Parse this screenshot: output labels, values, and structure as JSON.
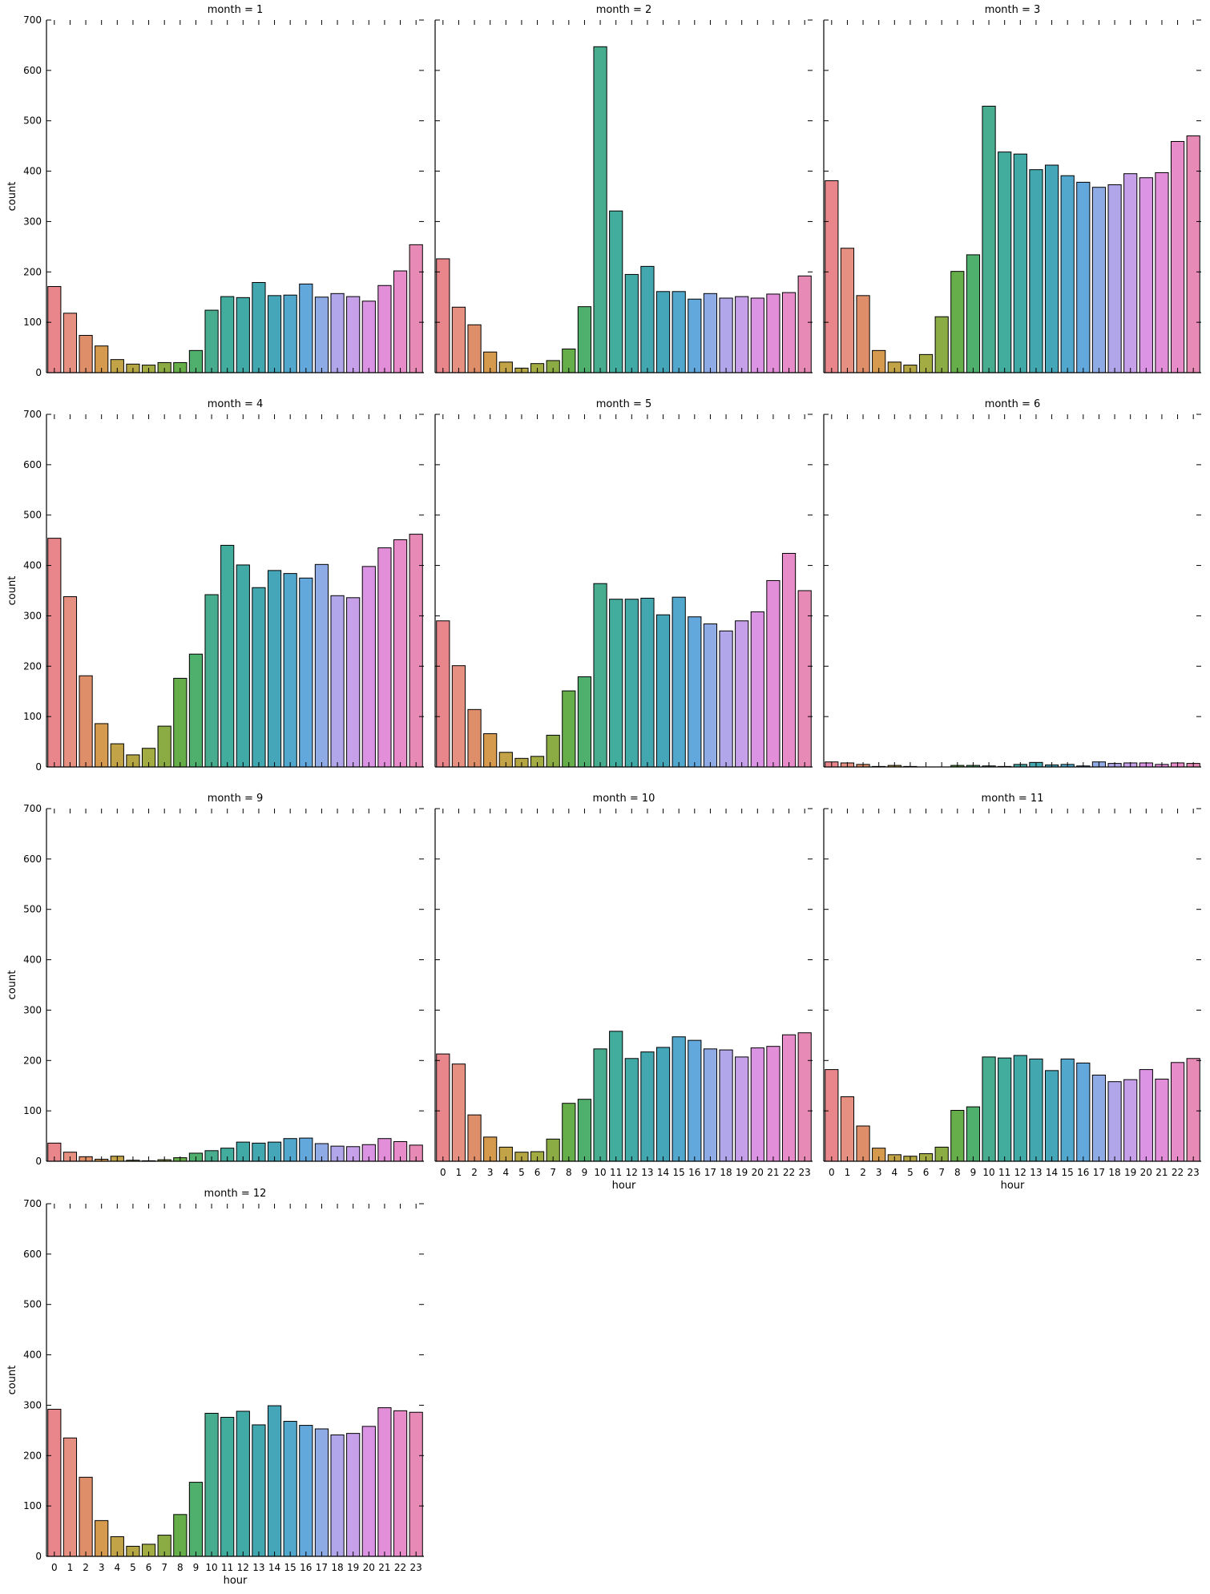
{
  "chart_data": {
    "type": "bar",
    "layout": "facet-grid",
    "xlabel": "hour",
    "ylabel": "count",
    "ylim": [
      0,
      700
    ],
    "yticks": [
      0,
      100,
      200,
      300,
      400,
      500,
      600,
      700
    ],
    "categories": [
      "0",
      "1",
      "2",
      "3",
      "4",
      "5",
      "6",
      "7",
      "8",
      "9",
      "10",
      "11",
      "12",
      "13",
      "14",
      "15",
      "16",
      "17",
      "18",
      "19",
      "20",
      "21",
      "22",
      "23"
    ],
    "colors": [
      "#e8868c",
      "#e59080",
      "#de8f6a",
      "#d59a4e",
      "#c2a347",
      "#b4a643",
      "#a3ab43",
      "#8bac44",
      "#65ae4a",
      "#4fb06e",
      "#47ad8e",
      "#42ad9c",
      "#42aaa6",
      "#42a7ae",
      "#45a5b9",
      "#52a7cc",
      "#63a8dd",
      "#8fabe6",
      "#b0a6e9",
      "#c6a0e8",
      "#db93e4",
      "#e38ed8",
      "#e78cc9",
      "#e88ab6"
    ],
    "panels": [
      {
        "title": "month = 1",
        "values": [
          171,
          118,
          74,
          53,
          26,
          17,
          15,
          20,
          20,
          44,
          124,
          151,
          149,
          179,
          153,
          154,
          176,
          150,
          157,
          151,
          142,
          173,
          202,
          254
        ]
      },
      {
        "title": "month = 2",
        "values": [
          226,
          130,
          95,
          41,
          21,
          9,
          18,
          24,
          47,
          131,
          647,
          321,
          195,
          211,
          161,
          161,
          146,
          157,
          148,
          151,
          148,
          156,
          159,
          192
        ]
      },
      {
        "title": "month = 3",
        "values": [
          381,
          247,
          153,
          44,
          21,
          15,
          36,
          111,
          201,
          234,
          529,
          438,
          434,
          403,
          412,
          391,
          378,
          368,
          373,
          395,
          387,
          397,
          459,
          470
        ]
      },
      {
        "title": "month = 4",
        "values": [
          454,
          338,
          181,
          86,
          46,
          24,
          37,
          81,
          176,
          224,
          342,
          440,
          401,
          356,
          390,
          384,
          375,
          402,
          340,
          336,
          398,
          435,
          451,
          462
        ]
      },
      {
        "title": "month = 5",
        "values": [
          290,
          201,
          114,
          66,
          29,
          17,
          21,
          63,
          151,
          179,
          364,
          333,
          333,
          335,
          302,
          337,
          298,
          284,
          270,
          290,
          308,
          370,
          424,
          350
        ]
      },
      {
        "title": "month = 6",
        "values": [
          10,
          8,
          5,
          1,
          3,
          1,
          0,
          0,
          3,
          3,
          2,
          1,
          5,
          9,
          4,
          5,
          2,
          10,
          7,
          8,
          8,
          5,
          8,
          7
        ]
      },
      {
        "title": "month = 9",
        "values": [
          36,
          18,
          9,
          4,
          10,
          2,
          1,
          3,
          7,
          16,
          21,
          26,
          38,
          36,
          38,
          45,
          46,
          35,
          30,
          29,
          33,
          45,
          39,
          32
        ]
      },
      {
        "title": "month = 10",
        "values": [
          213,
          193,
          92,
          48,
          28,
          18,
          19,
          44,
          115,
          123,
          223,
          258,
          204,
          217,
          226,
          247,
          240,
          223,
          221,
          207,
          225,
          228,
          251,
          255
        ]
      },
      {
        "title": "month = 11",
        "values": [
          182,
          128,
          70,
          26,
          13,
          10,
          15,
          28,
          101,
          108,
          207,
          205,
          210,
          203,
          180,
          203,
          195,
          171,
          158,
          162,
          182,
          163,
          196,
          204
        ]
      },
      {
        "title": "month = 12",
        "values": [
          292,
          235,
          157,
          71,
          39,
          20,
          24,
          42,
          83,
          147,
          284,
          276,
          288,
          261,
          299,
          268,
          260,
          253,
          241,
          244,
          258,
          295,
          289,
          286
        ]
      }
    ]
  }
}
